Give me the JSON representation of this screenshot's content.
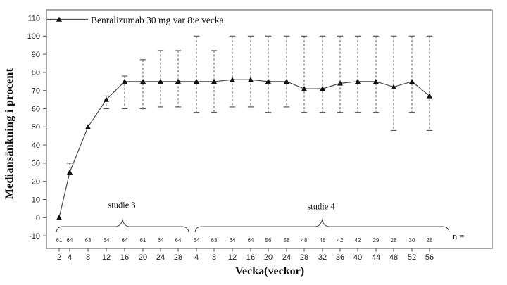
{
  "chart_data": {
    "type": "line",
    "title": "",
    "legend_label": "Benralizumab 30 mg var 8:e vecka",
    "xlabel": "Vecka(veckor)",
    "ylabel": "Mediansänkning i procent",
    "n_label": "n =",
    "ylim": [
      -10,
      110
    ],
    "yticks": [
      -10,
      0,
      10,
      20,
      30,
      40,
      50,
      60,
      70,
      80,
      90,
      100,
      110
    ],
    "grid": false,
    "legend_position": "top-left-inside",
    "marker": "filled-triangle",
    "line_color": "#4a4a4a",
    "error_bar_color": "#5a5a5a",
    "error_bar_style": "dashed-stem-solid-caps",
    "groups": [
      {
        "label": "studie 3",
        "weeks": [
          2,
          4,
          8,
          12,
          16,
          20,
          24,
          28
        ],
        "median": [
          0,
          25,
          50,
          65,
          75,
          75,
          75,
          75
        ],
        "err_low": [
          null,
          null,
          null,
          60,
          60,
          60,
          61,
          61
        ],
        "err_high": [
          null,
          30,
          null,
          67,
          78,
          87,
          92,
          92
        ],
        "n": [
          61,
          64,
          63,
          64,
          64,
          61,
          64,
          64
        ]
      },
      {
        "label": "studie 4",
        "weeks": [
          4,
          8,
          12,
          16,
          20,
          24,
          28,
          32,
          36,
          40,
          44,
          48,
          52,
          56
        ],
        "median": [
          75,
          75,
          76,
          76,
          75,
          75,
          71,
          71,
          74,
          75,
          75,
          72,
          75,
          67
        ],
        "err_low": [
          58,
          58,
          61,
          61,
          58,
          61,
          58,
          58,
          58,
          58,
          58,
          48,
          58,
          48
        ],
        "err_high": [
          100,
          92,
          100,
          100,
          100,
          100,
          100,
          100,
          100,
          100,
          100,
          100,
          100,
          100
        ],
        "n": [
          64,
          63,
          64,
          64,
          56,
          58,
          48,
          48,
          42,
          42,
          29,
          28,
          30,
          28
        ]
      }
    ]
  }
}
